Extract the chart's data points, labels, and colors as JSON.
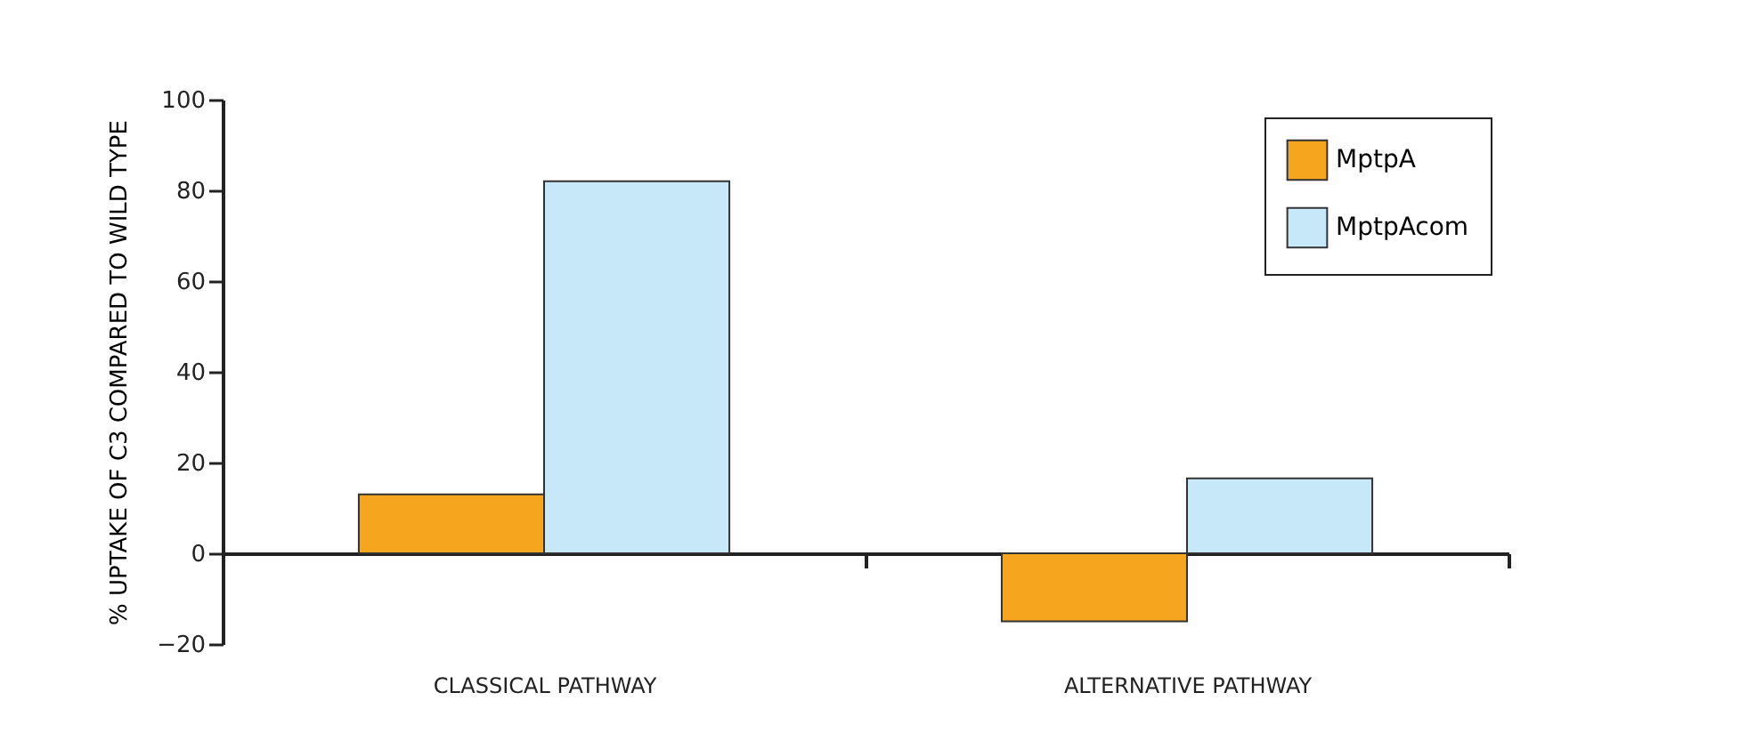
{
  "chart_data": {
    "type": "bar",
    "ylabel": "% UPTAKE OF C3 COMPARED TO WILD TYPE",
    "categories": [
      "CLASSICAL PATHWAY",
      "ALTERNATIVE PATHWAY"
    ],
    "series": [
      {
        "name": "MptpA",
        "color": "#f5a61e",
        "values": [
          13,
          -15
        ]
      },
      {
        "name": "MptpAcom",
        "color": "#c6e8f8",
        "values": [
          82,
          16.5
        ]
      }
    ],
    "ylim": [
      -20,
      100
    ],
    "yticks": [
      -20,
      0,
      20,
      40,
      60,
      80,
      100
    ],
    "legend": "top right"
  }
}
